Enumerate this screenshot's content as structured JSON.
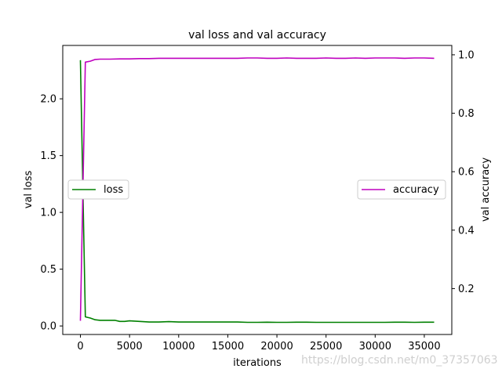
{
  "chart_data": {
    "type": "line",
    "title": "val loss and val accuracy",
    "xlabel": "iterations",
    "ylabel_left": "val loss",
    "ylabel_right": "val accuracy",
    "xlim": [
      -1800,
      37800
    ],
    "ylim_left": [
      -0.075,
      2.47
    ],
    "ylim_right": [
      0.043,
      1.032
    ],
    "x_ticks": [
      0,
      5000,
      10000,
      15000,
      20000,
      25000,
      30000,
      35000
    ],
    "y_ticks_left": [
      0.0,
      0.5,
      1.0,
      1.5,
      2.0
    ],
    "y_ticks_right": [
      0.2,
      0.4,
      0.6,
      0.8,
      1.0
    ],
    "x_tick_labels": [
      "0",
      "5000",
      "10000",
      "15000",
      "20000",
      "25000",
      "30000",
      "35000"
    ],
    "y_tick_labels_left": [
      "0.0",
      "0.5",
      "1.0",
      "1.5",
      "2.0"
    ],
    "y_tick_labels_right": [
      "0.2",
      "0.4",
      "0.6",
      "0.8",
      "1.0"
    ],
    "grid": false,
    "series": [
      {
        "name": "loss",
        "axis": "left",
        "color": "#008000",
        "legend_position": "center-left",
        "x": [
          0,
          500,
          1000,
          1500,
          2000,
          2500,
          3000,
          3500,
          4000,
          4500,
          5000,
          6000,
          7000,
          8000,
          9000,
          10000,
          11000,
          12000,
          13000,
          14000,
          15000,
          16000,
          17000,
          18000,
          19000,
          20000,
          21000,
          22000,
          23000,
          24000,
          25000,
          26000,
          27000,
          28000,
          29000,
          30000,
          31000,
          32000,
          33000,
          34000,
          35000,
          36000
        ],
        "y": [
          2.34,
          0.08,
          0.07,
          0.055,
          0.05,
          0.05,
          0.05,
          0.05,
          0.04,
          0.04,
          0.045,
          0.04,
          0.035,
          0.035,
          0.038,
          0.035,
          0.035,
          0.035,
          0.035,
          0.035,
          0.035,
          0.035,
          0.032,
          0.032,
          0.033,
          0.032,
          0.032,
          0.033,
          0.033,
          0.032,
          0.032,
          0.032,
          0.032,
          0.032,
          0.032,
          0.032,
          0.032,
          0.033,
          0.033,
          0.032,
          0.033,
          0.033
        ]
      },
      {
        "name": "accuracy",
        "axis": "right",
        "color": "#bf00bf",
        "legend_position": "center-right",
        "x": [
          0,
          500,
          1000,
          1500,
          2000,
          3000,
          4000,
          5000,
          6000,
          7000,
          8000,
          9000,
          10000,
          11000,
          12000,
          13000,
          14000,
          15000,
          16000,
          17000,
          18000,
          19000,
          20000,
          21000,
          22000,
          23000,
          24000,
          25000,
          26000,
          27000,
          28000,
          29000,
          30000,
          31000,
          32000,
          33000,
          34000,
          35000,
          36000
        ],
        "y": [
          0.09,
          0.975,
          0.978,
          0.984,
          0.985,
          0.985,
          0.986,
          0.986,
          0.987,
          0.987,
          0.988,
          0.988,
          0.988,
          0.988,
          0.988,
          0.988,
          0.988,
          0.988,
          0.988,
          0.989,
          0.989,
          0.988,
          0.988,
          0.989,
          0.988,
          0.988,
          0.988,
          0.989,
          0.988,
          0.988,
          0.989,
          0.988,
          0.989,
          0.989,
          0.989,
          0.988,
          0.989,
          0.989,
          0.988
        ]
      }
    ]
  },
  "watermark": "https://blog.csdn.net/m0_37357063"
}
